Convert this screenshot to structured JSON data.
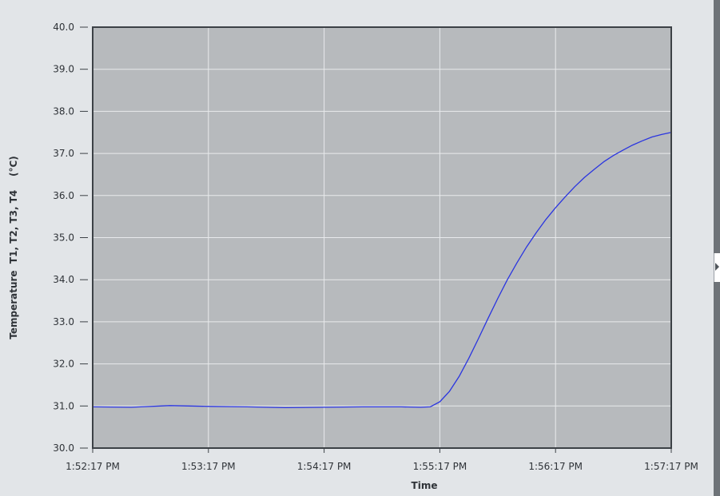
{
  "chart_data": {
    "type": "line",
    "title": "",
    "xlabel": "Time",
    "ylabel": "Temperature  T1, T2, T3, T4    (°C)",
    "ylim": [
      30,
      40
    ],
    "y_ticks": [
      "40.0",
      "39.0",
      "38.0",
      "37.0",
      "36.0",
      "35.0",
      "34.0",
      "33.0",
      "32.0",
      "31.0",
      "30.0"
    ],
    "x_ticks": [
      "1:52:17 PM",
      "1:53:17 PM",
      "1:54:17 PM",
      "1:55:17 PM",
      "1:56:17 PM",
      "1:57:17 PM"
    ],
    "x_unit": "seconds since 1:52:17 PM",
    "xlim": [
      0,
      300
    ],
    "grid": true,
    "line_color": "#2a35e0",
    "plot_background": "#b7babd",
    "series": [
      {
        "name": "",
        "x": [
          0,
          20,
          40,
          60,
          80,
          100,
          120,
          140,
          160,
          170,
          175,
          180,
          185,
          190,
          195,
          200,
          205,
          210,
          215,
          220,
          225,
          230,
          235,
          240,
          245,
          250,
          255,
          260,
          265,
          270,
          275,
          280,
          285,
          290,
          295,
          300
        ],
        "y": [
          30.98,
          30.97,
          31.01,
          30.99,
          30.98,
          30.96,
          30.97,
          30.98,
          30.98,
          30.97,
          30.98,
          31.1,
          31.35,
          31.7,
          32.13,
          32.6,
          33.08,
          33.55,
          34.0,
          34.4,
          34.78,
          35.12,
          35.43,
          35.71,
          35.97,
          36.21,
          36.43,
          36.62,
          36.8,
          36.95,
          37.08,
          37.2,
          37.3,
          37.39,
          37.45,
          37.5
        ]
      }
    ]
  },
  "ui": {
    "splitter_icon": "triangle-right-icon"
  }
}
